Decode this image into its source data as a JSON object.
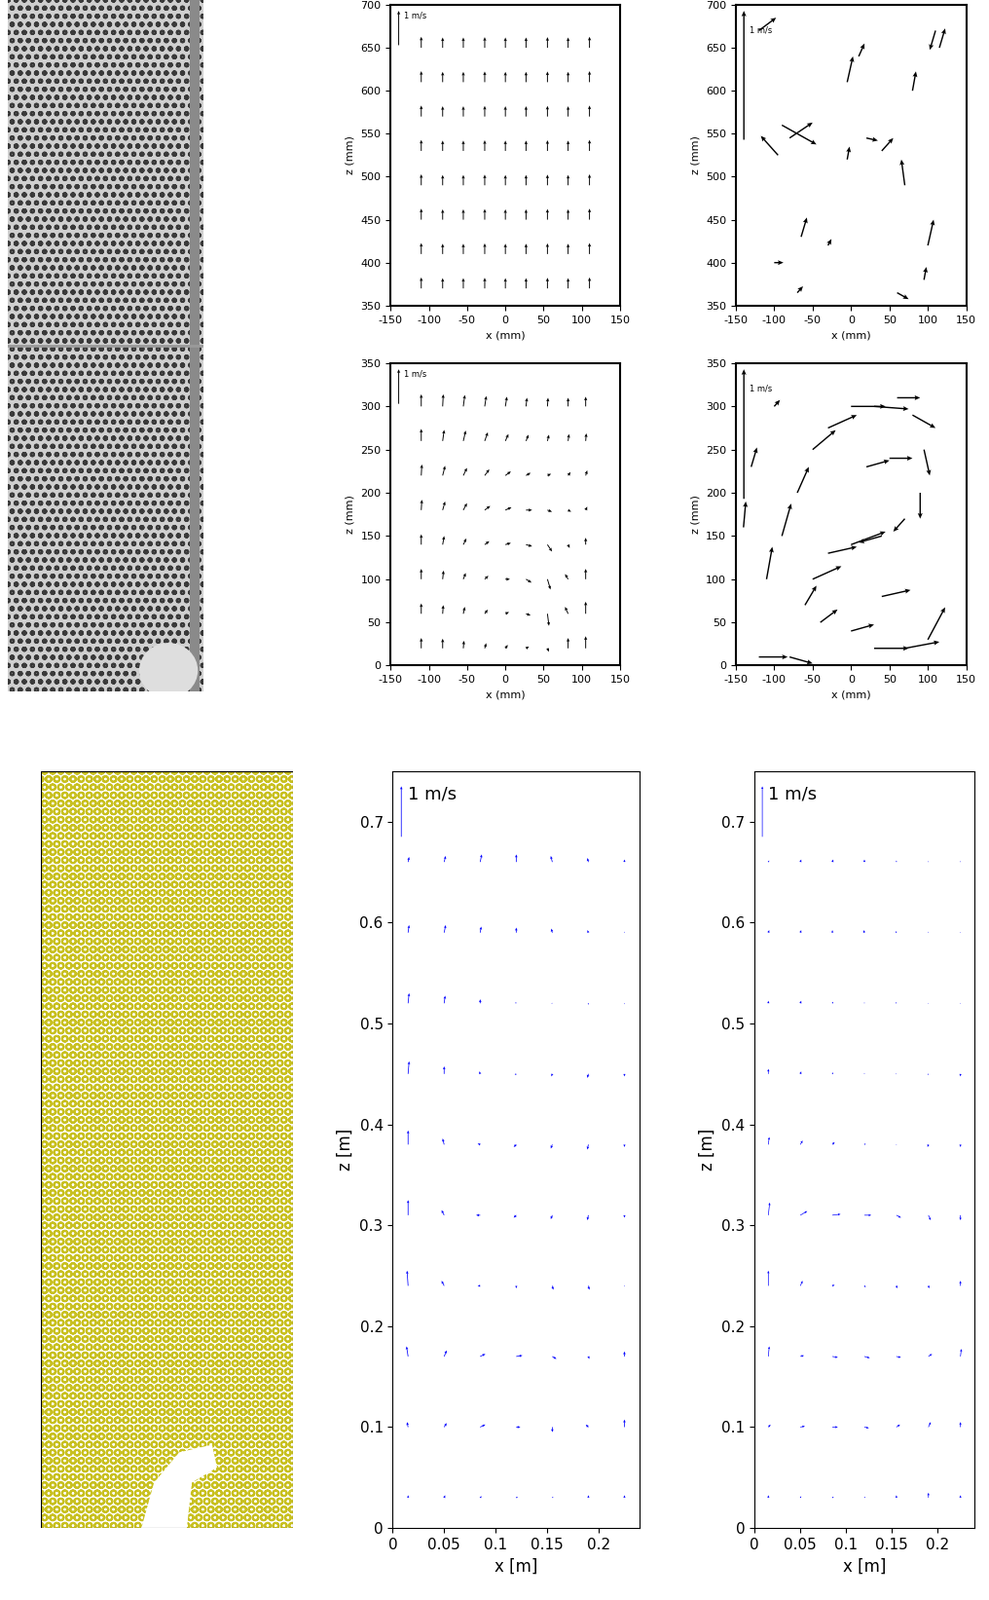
{
  "chart_data": [
    {
      "type": "quiver",
      "xlabel": "x (mm)",
      "ylabel": "z (mm)",
      "color": "#000000",
      "xlim": [
        -150,
        150
      ],
      "xticks": [
        -150,
        -100,
        -50,
        0,
        50,
        100,
        150
      ],
      "ylim": [
        350,
        700
      ],
      "yticks": [
        350,
        400,
        450,
        500,
        550,
        600,
        650,
        700
      ],
      "reference_vector": {
        "label": "1 m/s",
        "value": 1
      },
      "x": [
        -110,
        -82,
        -55,
        -27,
        0,
        27,
        55,
        82,
        110
      ],
      "z": [
        370,
        410,
        450,
        490,
        530,
        570,
        610,
        650
      ],
      "u": [
        [
          0,
          0,
          0,
          0,
          0,
          0,
          0,
          0,
          0
        ],
        [
          0,
          0,
          0,
          0,
          0,
          0,
          0,
          0,
          0
        ],
        [
          0,
          0,
          0,
          0,
          0,
          0,
          0,
          0,
          0
        ],
        [
          0,
          0,
          0,
          0,
          0,
          0,
          0,
          0,
          0
        ],
        [
          0,
          0,
          0,
          0,
          0,
          0,
          0,
          0,
          0
        ],
        [
          0,
          0,
          0,
          0,
          0,
          0,
          0,
          0,
          0
        ],
        [
          0,
          0,
          0,
          0,
          0,
          0,
          0,
          0,
          0
        ],
        [
          0,
          0,
          0,
          0,
          0,
          0,
          0,
          0,
          0
        ]
      ],
      "v": [
        [
          0.32,
          0.3,
          0.3,
          0.31,
          0.3,
          0.3,
          0.31,
          0.3,
          0.32
        ],
        [
          0.32,
          0.3,
          0.3,
          0.31,
          0.3,
          0.3,
          0.31,
          0.3,
          0.32
        ],
        [
          0.32,
          0.3,
          0.3,
          0.31,
          0.3,
          0.3,
          0.31,
          0.3,
          0.32
        ],
        [
          0.32,
          0.3,
          0.3,
          0.31,
          0.3,
          0.3,
          0.31,
          0.3,
          0.32
        ],
        [
          0.32,
          0.3,
          0.3,
          0.31,
          0.3,
          0.3,
          0.31,
          0.3,
          0.32
        ],
        [
          0.32,
          0.3,
          0.3,
          0.31,
          0.3,
          0.3,
          0.31,
          0.3,
          0.32
        ],
        [
          0.32,
          0.3,
          0.3,
          0.31,
          0.3,
          0.3,
          0.31,
          0.3,
          0.32
        ],
        [
          0.32,
          0.3,
          0.3,
          0.31,
          0.3,
          0.3,
          0.31,
          0.3,
          0.32
        ]
      ]
    },
    {
      "type": "quiver",
      "xlabel": "x (mm)",
      "ylabel": "z (mm)",
      "color": "#000000",
      "xlim": [
        -150,
        150
      ],
      "xticks": [
        -150,
        -100,
        -50,
        0,
        50,
        100,
        150
      ],
      "ylim": [
        0,
        350
      ],
      "yticks": [
        0,
        50,
        100,
        150,
        200,
        250,
        300,
        350
      ],
      "reference_vector": {
        "label": "1 m/s",
        "value": 1
      },
      "x": [
        -110,
        -82,
        -55,
        -27,
        0,
        27,
        55,
        82,
        105
      ],
      "z": [
        20,
        60,
        100,
        140,
        180,
        220,
        260,
        300
      ],
      "u": [
        [
          0,
          0,
          0.02,
          0.05,
          0.08,
          0.1,
          0.05,
          0,
          0
        ],
        [
          0,
          0.02,
          0.05,
          0.1,
          0.12,
          0.15,
          0.05,
          -0.1,
          0
        ],
        [
          0,
          0.03,
          0.08,
          0.12,
          0.15,
          0.18,
          0.1,
          -0.1,
          0
        ],
        [
          0,
          0.05,
          0.1,
          0.15,
          0.18,
          0.2,
          0.15,
          0.05,
          0
        ],
        [
          0.02,
          0.08,
          0.12,
          0.18,
          0.2,
          0.2,
          0.15,
          0.1,
          0.05
        ],
        [
          0.02,
          0.08,
          0.12,
          0.15,
          0.18,
          0.15,
          0.12,
          0.08,
          0.05
        ],
        [
          0,
          0.05,
          0.08,
          0.1,
          0.1,
          0.08,
          0.05,
          0.03,
          0.02
        ],
        [
          0,
          0.02,
          0.05,
          0.05,
          0.05,
          0.03,
          0.02,
          0,
          0
        ]
      ],
      "v": [
        [
          0.3,
          0.28,
          0.22,
          0.15,
          0.1,
          0.05,
          -0.1,
          0.3,
          0.35
        ],
        [
          0.3,
          0.25,
          0.2,
          0.12,
          0.05,
          -0.05,
          -0.35,
          0.2,
          0.35
        ],
        [
          0.3,
          0.25,
          0.18,
          0.1,
          0.0,
          -0.1,
          -0.3,
          0.15,
          0.3
        ],
        [
          0.3,
          0.25,
          0.18,
          0.1,
          0.05,
          -0.05,
          -0.2,
          -0.1,
          0.2
        ],
        [
          0.3,
          0.25,
          0.2,
          0.12,
          0.08,
          0.0,
          -0.05,
          -0.05,
          0.1
        ],
        [
          0.32,
          0.28,
          0.22,
          0.18,
          0.12,
          0.08,
          0.05,
          0.1,
          0.15
        ],
        [
          0.35,
          0.32,
          0.3,
          0.25,
          0.2,
          0.18,
          0.18,
          0.2,
          0.22
        ],
        [
          0.35,
          0.35,
          0.33,
          0.3,
          0.28,
          0.25,
          0.25,
          0.25,
          0.28
        ]
      ]
    },
    {
      "type": "quiver",
      "xlabel": "x (mm)",
      "ylabel": "z (mm)",
      "color": "#000000",
      "xlim": [
        -150,
        150
      ],
      "xticks": [
        -150,
        -100,
        -50,
        0,
        50,
        100,
        150
      ],
      "ylim": [
        350,
        700
      ],
      "yticks": [
        350,
        400,
        450,
        500,
        550,
        600,
        650,
        700
      ],
      "reference_vector": {
        "label": "1 m/s",
        "value": 1
      },
      "x": [
        -120,
        -90,
        -80,
        -95,
        -65,
        -100,
        -30,
        -5,
        10,
        -5,
        20,
        40,
        70,
        80,
        110,
        100,
        60,
        -70,
        95,
        115
      ],
      "z": [
        670,
        560,
        545,
        525,
        430,
        400,
        420,
        610,
        640,
        520,
        545,
        530,
        490,
        600,
        670,
        420,
        365,
        365,
        380,
        650
      ],
      "u": [
        0.15,
        0.3,
        0.2,
        -0.15,
        0.05,
        0.08,
        0.03,
        0.05,
        0.05,
        0.02,
        0.1,
        0.1,
        -0.03,
        0.03,
        -0.05,
        0.05,
        0.1,
        0.05,
        0.02,
        0.05
      ],
      "v": [
        0.1,
        -0.15,
        0.12,
        0.15,
        0.15,
        0,
        0.05,
        0.2,
        0.1,
        0.1,
        -0.02,
        0.1,
        0.2,
        0.15,
        -0.15,
        0.2,
        -0.05,
        0.05,
        0.1,
        0.15
      ]
    },
    {
      "type": "quiver",
      "xlabel": "x (mm)",
      "ylabel": "z (mm)",
      "color": "#000000",
      "xlim": [
        -150,
        150
      ],
      "xticks": [
        -150,
        -100,
        -50,
        0,
        50,
        100,
        150
      ],
      "ylim": [
        0,
        350
      ],
      "yticks": [
        0,
        50,
        100,
        150,
        200,
        250,
        300,
        350
      ],
      "reference_vector": {
        "label": "1 m/s",
        "value": 1
      },
      "x": [
        -140,
        -110,
        -90,
        -70,
        -50,
        -30,
        0,
        30,
        60,
        80,
        95,
        90,
        70,
        40,
        0,
        -30,
        -50,
        -60,
        -40,
        0,
        30,
        70,
        100,
        -120,
        -80,
        40,
        -100,
        -130,
        20,
        50
      ],
      "z": [
        160,
        100,
        150,
        200,
        250,
        275,
        300,
        300,
        310,
        290,
        250,
        200,
        170,
        150,
        140,
        130,
        100,
        70,
        50,
        40,
        20,
        20,
        30,
        10,
        10,
        80,
        300,
        230,
        230,
        240
      ],
      "u": [
        0.02,
        0.05,
        0.08,
        0.1,
        0.2,
        0.25,
        0.3,
        0.3,
        0.2,
        0.2,
        0.05,
        0.0,
        -0.1,
        -0.2,
        0.3,
        0.25,
        0.25,
        0.1,
        0.15,
        0.2,
        0.3,
        0.3,
        0.15,
        0.25,
        0.2,
        0.25,
        0.05,
        0.05,
        0.2,
        0.2
      ],
      "v": [
        0.2,
        0.25,
        0.25,
        0.2,
        0.15,
        0.1,
        0.0,
        -0.02,
        0.0,
        -0.1,
        -0.2,
        -0.2,
        -0.1,
        -0.05,
        0.1,
        0.05,
        0.1,
        0.15,
        0.1,
        0.05,
        0.0,
        0.05,
        0.25,
        0.0,
        -0.05,
        0.05,
        0.05,
        0.15,
        0.05,
        0.0
      ]
    },
    {
      "type": "quiver",
      "xlabel": "x [m]",
      "ylabel": "z [m]",
      "color": "#0000ff",
      "xlim": [
        0,
        0.24
      ],
      "xticks": [
        0,
        0.05,
        0.1,
        0.15,
        0.2
      ],
      "ylim": [
        0,
        0.75
      ],
      "yticks": [
        0,
        0.1,
        0.2,
        0.3,
        0.4,
        0.5,
        0.6,
        0.7
      ],
      "reference_vector": {
        "label": "1 m/s",
        "value": 1
      },
      "x": [
        0.015,
        0.05,
        0.085,
        0.12,
        0.155,
        0.19,
        0.225
      ],
      "z": [
        0.03,
        0.1,
        0.17,
        0.24,
        0.31,
        0.38,
        0.45,
        0.52,
        0.59,
        0.66
      ],
      "u": [
        [
          0,
          0.02,
          0.03,
          0.03,
          0.02,
          0,
          0
        ],
        [
          -0.02,
          0.05,
          0.1,
          0.08,
          0,
          -0.05,
          0
        ],
        [
          -0.03,
          0.05,
          0.1,
          0.12,
          0.08,
          0.02,
          0
        ],
        [
          -0.02,
          -0.05,
          -0.05,
          0,
          0.02,
          0.02,
          0
        ],
        [
          0,
          -0.05,
          -0.08,
          -0.05,
          -0.03,
          -0.02,
          0
        ],
        [
          0,
          -0.03,
          -0.05,
          -0.05,
          -0.03,
          -0.02,
          0
        ],
        [
          0.02,
          0,
          -0.02,
          -0.03,
          -0.02,
          -0.02,
          0
        ],
        [
          0.02,
          0.02,
          0,
          -0.02,
          -0.02,
          0,
          0
        ],
        [
          0.02,
          0.03,
          0.02,
          0,
          -0.02,
          -0.02,
          0
        ],
        [
          0.02,
          0.03,
          0.03,
          0,
          -0.03,
          -0.02,
          0
        ]
      ],
      "v": [
        [
          0.05,
          0.05,
          0.03,
          0.02,
          0.02,
          0.05,
          0.05
        ],
        [
          0.1,
          0.08,
          0.05,
          0.0,
          -0.1,
          0.05,
          0.15
        ],
        [
          0.2,
          0.12,
          0.05,
          0.02,
          -0.05,
          -0.05,
          0.1
        ],
        [
          0.3,
          0.1,
          0.0,
          -0.05,
          -0.08,
          -0.08,
          0.0
        ],
        [
          0.3,
          0.1,
          0.0,
          -0.05,
          -0.08,
          -0.1,
          -0.05
        ],
        [
          0.28,
          0.12,
          0.02,
          -0.05,
          -0.08,
          -0.1,
          -0.05
        ],
        [
          0.25,
          0.15,
          0.05,
          -0.02,
          -0.05,
          -0.08,
          -0.05
        ],
        [
          0.2,
          0.15,
          0.08,
          0.02,
          0,
          -0.03,
          -0.02
        ],
        [
          0.15,
          0.15,
          0.12,
          0.1,
          0.08,
          0.05,
          0.02
        ],
        [
          0.1,
          0.12,
          0.15,
          0.15,
          0.12,
          0.08,
          0.05
        ]
      ]
    },
    {
      "type": "quiver",
      "xlabel": "x [m]",
      "ylabel": "z [m]",
      "color": "#0000ff",
      "xlim": [
        0,
        0.24
      ],
      "xticks": [
        0,
        0.05,
        0.1,
        0.15,
        0.2
      ],
      "ylim": [
        0,
        0.75
      ],
      "yticks": [
        0,
        0.1,
        0.2,
        0.3,
        0.4,
        0.5,
        0.6,
        0.7
      ],
      "reference_vector": {
        "label": "1 m/s",
        "value": 1
      },
      "x": [
        0.015,
        0.05,
        0.085,
        0.12,
        0.155,
        0.19,
        0.225
      ],
      "z": [
        0.03,
        0.1,
        0.17,
        0.24,
        0.31,
        0.38,
        0.45,
        0.52,
        0.59,
        0.66
      ],
      "u": [
        [
          0,
          0.02,
          0.03,
          0.02,
          0,
          0,
          0
        ],
        [
          0.05,
          0.1,
          0.12,
          0.1,
          0.08,
          0.05,
          0
        ],
        [
          0.02,
          0.08,
          0.12,
          0.12,
          0.1,
          0.08,
          0.02
        ],
        [
          0,
          0.05,
          0.05,
          0.03,
          0.02,
          0.02,
          0
        ],
        [
          0.03,
          0.15,
          0.18,
          0.15,
          0.1,
          0.05,
          0
        ],
        [
          0.02,
          0.05,
          0.05,
          0.03,
          0,
          -0.02,
          0
        ],
        [
          0,
          0.02,
          0.02,
          0,
          -0.02,
          -0.02,
          0
        ],
        [
          0,
          0.02,
          0.02,
          0,
          -0.02,
          0,
          0
        ],
        [
          0.02,
          0.02,
          0,
          -0.02,
          -0.02,
          0,
          0
        ],
        [
          0.02,
          0.02,
          0.02,
          0,
          0,
          0,
          0
        ]
      ],
      "v": [
        [
          0.05,
          0.03,
          0.02,
          0.02,
          0.05,
          0.1,
          0.05
        ],
        [
          0.05,
          0.02,
          0,
          -0.02,
          0.05,
          0.1,
          0.1
        ],
        [
          0.2,
          0.02,
          -0.02,
          -0.03,
          -0.02,
          0.05,
          0.15
        ],
        [
          0.3,
          0.1,
          0.02,
          -0.03,
          -0.05,
          -0.05,
          0.1
        ],
        [
          0.25,
          0.08,
          0.02,
          0,
          -0.05,
          -0.1,
          -0.1
        ],
        [
          0.15,
          0.08,
          0.05,
          0.02,
          0,
          -0.05,
          -0.05
        ],
        [
          0.1,
          0.05,
          0.03,
          0.02,
          0,
          -0.02,
          -0.05
        ],
        [
          0.05,
          0.05,
          0.03,
          0.02,
          0.02,
          0,
          0
        ],
        [
          0.05,
          0.05,
          0.05,
          0.05,
          0.03,
          0.02,
          0
        ],
        [
          0.03,
          0.05,
          0.05,
          0.05,
          0.03,
          0.02,
          0.02
        ]
      ]
    }
  ]
}
